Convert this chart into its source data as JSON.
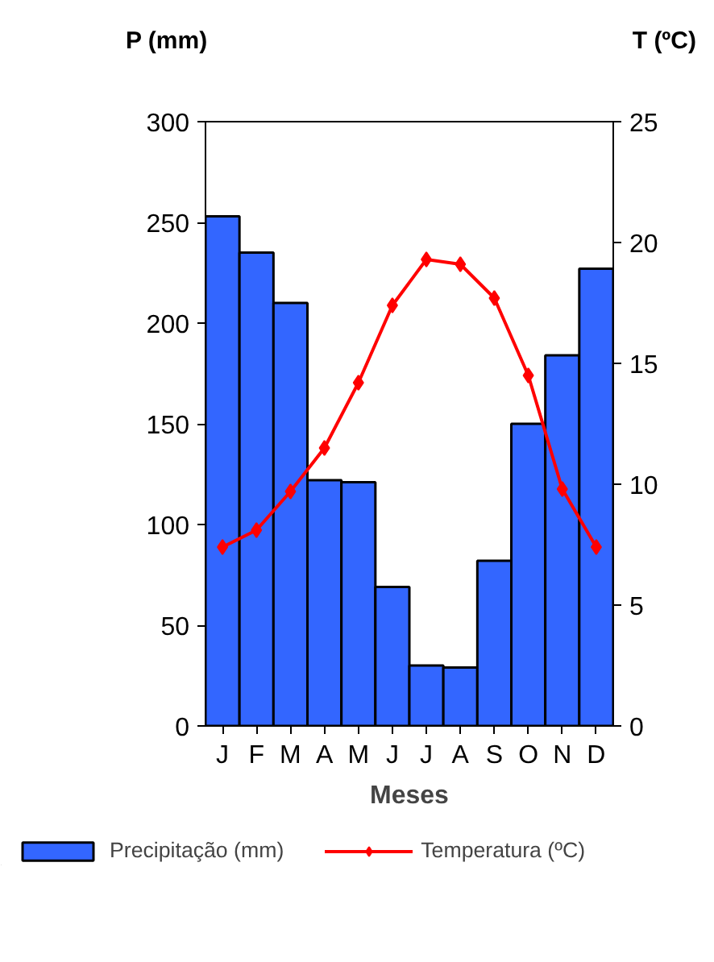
{
  "chart_data": {
    "type": "bar",
    "xlabel": "Meses",
    "ylabel": "P (mm)",
    "y2label": "T (ºC)",
    "categories": [
      "J",
      "F",
      "M",
      "A",
      "M",
      "J",
      "J",
      "A",
      "S",
      "O",
      "N",
      "D"
    ],
    "series": [
      {
        "name": "Precipitação (mm)",
        "color": "#3366ff",
        "values": [
          253,
          235,
          210,
          122,
          121,
          69,
          30,
          29,
          82,
          150,
          184,
          227
        ]
      },
      {
        "name": "Temperatura (ºC)",
        "type": "line",
        "axis": "y2",
        "color": "#ff0000",
        "marker": "diamond",
        "values": [
          7.4,
          8.1,
          9.7,
          11.5,
          14.2,
          17.4,
          19.3,
          19.1,
          17.7,
          14.5,
          9.8,
          7.4
        ]
      }
    ],
    "ylim": [
      0,
      300
    ],
    "yticks": [
      0,
      50,
      100,
      150,
      200,
      250,
      300
    ],
    "y2lim": [
      0,
      25
    ],
    "y2ticks": [
      0,
      5,
      10,
      15,
      20,
      25
    ],
    "grid": false,
    "legend": "bottom"
  }
}
